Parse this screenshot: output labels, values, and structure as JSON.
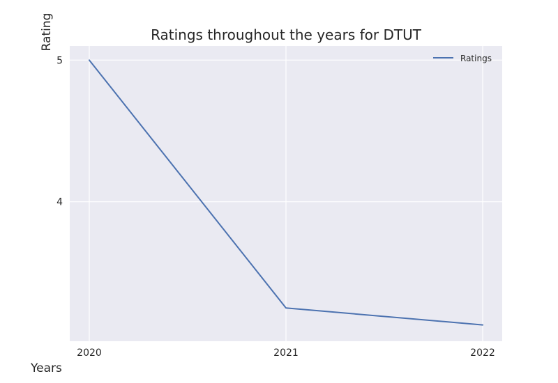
{
  "chart_data": {
    "type": "line",
    "title": "Ratings throughout the years for DTUT",
    "xlabel": "Years",
    "ylabel": "Rating",
    "x": [
      "2020",
      "2021",
      "2022"
    ],
    "yticks": [
      4,
      5
    ],
    "ylim": [
      3.015,
      5.1
    ],
    "grid": true,
    "legend_position": "top-right",
    "series": [
      {
        "name": "Ratings",
        "values": [
          5.0,
          3.25,
          3.13
        ],
        "color": "#4c72b0"
      }
    ],
    "background_color": "#eaeaf2",
    "grid_color": "#ffffff"
  }
}
